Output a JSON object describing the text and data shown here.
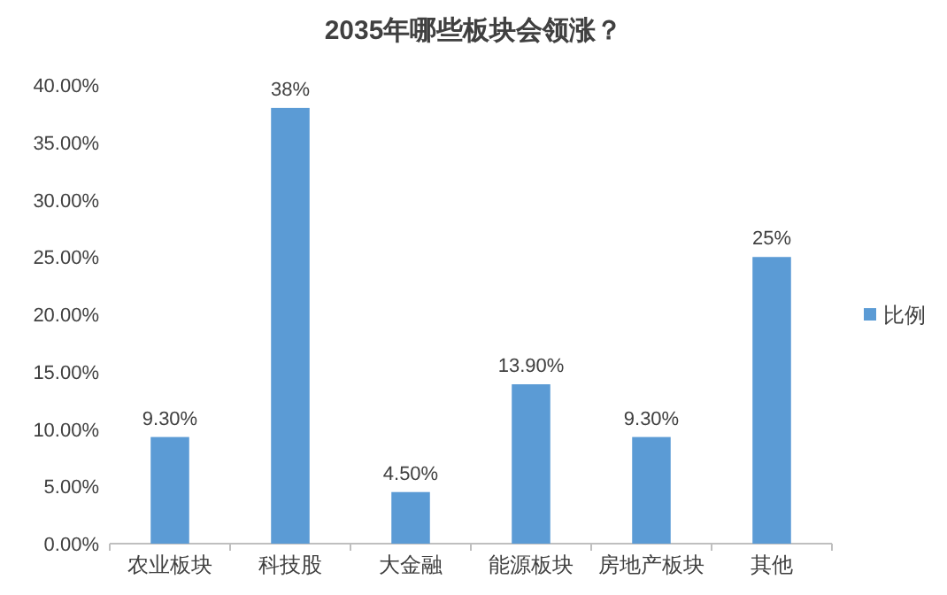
{
  "chart_data": {
    "type": "bar",
    "title": "2035年哪些板块会领涨？",
    "categories": [
      "农业板块",
      "科技股",
      "大金融",
      "能源板块",
      "房地产板块",
      "其他"
    ],
    "series": [
      {
        "name": "比例",
        "color": "#5b9bd5",
        "values": [
          9.3,
          38,
          4.5,
          13.9,
          9.3,
          25
        ],
        "value_labels": [
          "9.30%",
          "38%",
          "4.50%",
          "13.90%",
          "9.30%",
          "25%"
        ]
      }
    ],
    "ylim": [
      0,
      40
    ],
    "yticks": [
      {
        "value": 0,
        "label": "0.00%"
      },
      {
        "value": 5,
        "label": "5.00%"
      },
      {
        "value": 10,
        "label": "10.00%"
      },
      {
        "value": 15,
        "label": "15.00%"
      },
      {
        "value": 20,
        "label": "20.00%"
      },
      {
        "value": 25,
        "label": "25.00%"
      },
      {
        "value": 30,
        "label": "30.00%"
      },
      {
        "value": 35,
        "label": "35.00%"
      },
      {
        "value": 40,
        "label": "40.00%"
      }
    ],
    "legend": "right",
    "grid": false
  }
}
